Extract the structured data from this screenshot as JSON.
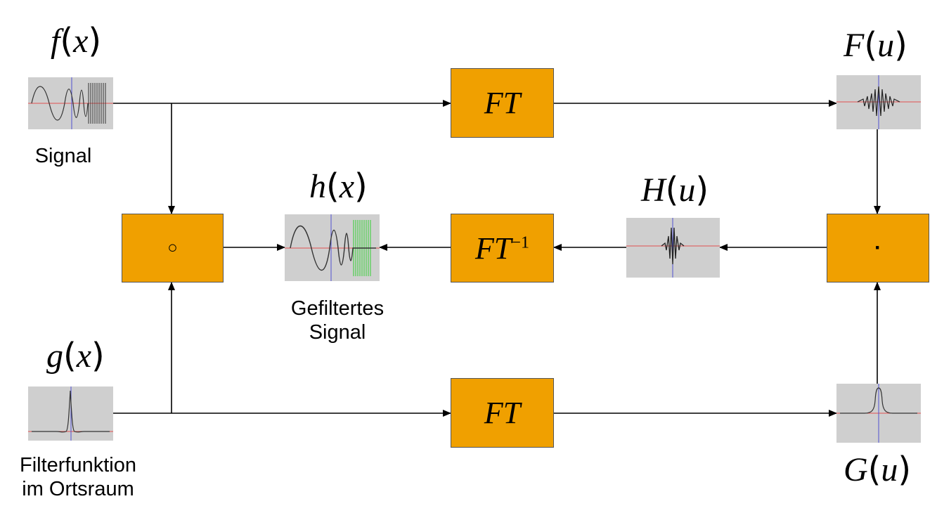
{
  "labels": {
    "f_name": "f",
    "f_arg": "x",
    "F_name": "F",
    "F_arg": "u",
    "h_name": "h",
    "h_arg": "x",
    "H_name": "H",
    "H_arg": "u",
    "g_name": "g",
    "g_arg": "x",
    "G_name": "G",
    "G_arg": "u"
  },
  "captions": {
    "signal": "Signal",
    "filtered_line1": "Gefiltertes",
    "filtered_line2": "Signal",
    "filter_line1": "Filterfunktion",
    "filter_line2": "im Ortsraum"
  },
  "boxes": {
    "ft_top": "FT",
    "ft_inverse": "FT",
    "ft_inverse_exp": "−1",
    "ft_bottom": "FT",
    "convolution_op": "○",
    "multiply_op": "·"
  },
  "colors": {
    "box_fill": "#f0a000",
    "thumb_bg": "#cfcfcf",
    "axis_red": "#e05050",
    "axis_blue": "#5050d0",
    "filtered_green": "#60d060"
  }
}
